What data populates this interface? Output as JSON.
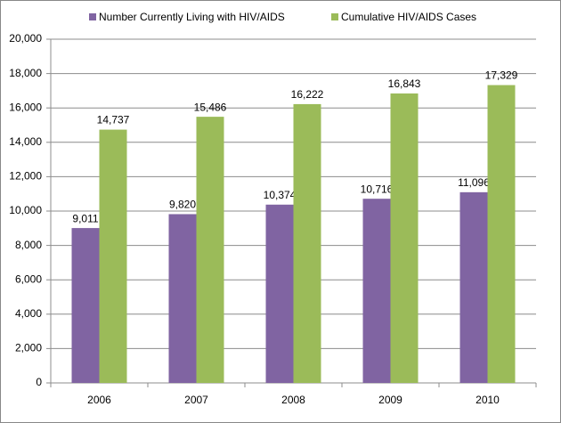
{
  "chart_data": {
    "type": "bar",
    "categories": [
      "2006",
      "2007",
      "2008",
      "2009",
      "2010"
    ],
    "series": [
      {
        "name": "Number Currently Living with HIV/AIDS",
        "color": "#8064a2",
        "values": [
          9011,
          9820,
          10374,
          10716,
          11096
        ],
        "value_labels": [
          "9,011",
          "9,820",
          "10,374",
          "10,716",
          "11,096"
        ]
      },
      {
        "name": "Cumulative HIV/AIDS Cases",
        "color": "#9bbb59",
        "values": [
          14737,
          15486,
          16222,
          16843,
          17329
        ],
        "value_labels": [
          "14,737",
          "15,486",
          "16,222",
          "16,843",
          "17,329"
        ]
      }
    ],
    "ylim": [
      0,
      20000
    ],
    "yticks": [
      0,
      {
        "value": 2000,
        "label": "2,000"
      },
      {
        "value": 4000,
        "label": "4,000"
      },
      {
        "value": 6000,
        "label": "6,000"
      },
      {
        "value": 8000,
        "label": "8,000"
      },
      {
        "value": 10000,
        "label": "10,000"
      },
      {
        "value": 12000,
        "label": "12,000"
      },
      {
        "value": 14000,
        "label": "14,000"
      },
      {
        "value": 16000,
        "label": "16,000"
      },
      {
        "value": 18000,
        "label": "18,000"
      },
      {
        "value": 20000,
        "label": "20,000"
      }
    ],
    "grid": true,
    "legend": "top"
  }
}
